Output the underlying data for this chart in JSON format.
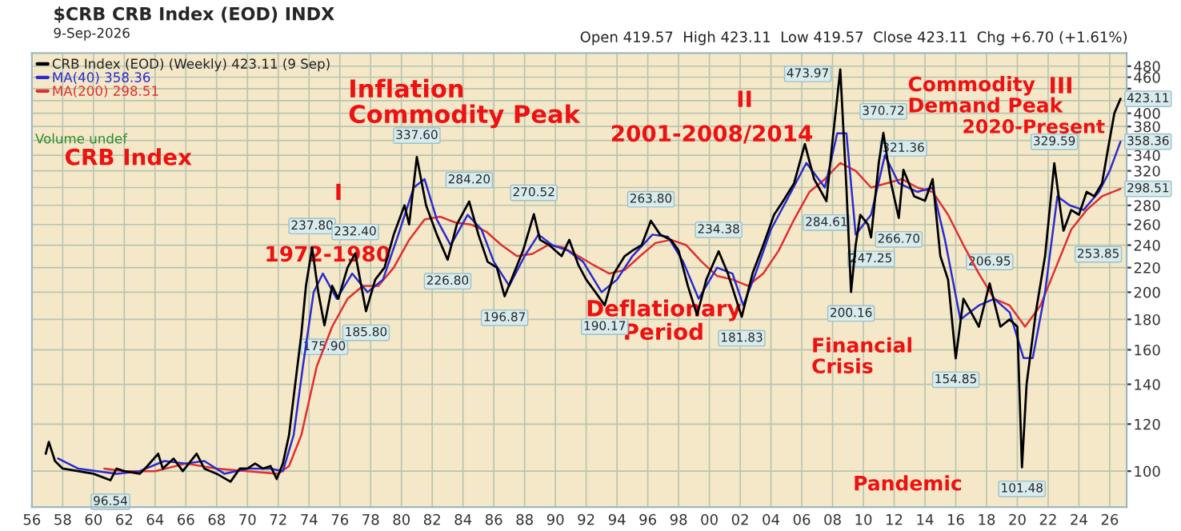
{
  "chart_data": {
    "type": "line",
    "title": "$CRB CRB Index (EOD) INDX",
    "subtitle": "9-Sep-2026",
    "xlim": [
      1956,
      2027.1
    ],
    "ylim": [
      87,
      505
    ],
    "log": "y",
    "grid": true,
    "legend": "top left",
    "tick_labels": "xy",
    "xticks": [
      {
        "value": 1956,
        "label": "56"
      },
      {
        "value": 1958,
        "label": "58"
      },
      {
        "value": 1960,
        "label": "60"
      },
      {
        "value": 1962,
        "label": "62"
      },
      {
        "value": 1964,
        "label": "64"
      },
      {
        "value": 1966,
        "label": "66"
      },
      {
        "value": 1968,
        "label": "68"
      },
      {
        "value": 1970,
        "label": "70"
      },
      {
        "value": 1972,
        "label": "72"
      },
      {
        "value": 1974,
        "label": "74"
      },
      {
        "value": 1976,
        "label": "76"
      },
      {
        "value": 1978,
        "label": "78"
      },
      {
        "value": 1980,
        "label": "80"
      },
      {
        "value": 1982,
        "label": "82"
      },
      {
        "value": 1984,
        "label": "84"
      },
      {
        "value": 1986,
        "label": "86"
      },
      {
        "value": 1988,
        "label": "88"
      },
      {
        "value": 1990,
        "label": "90"
      },
      {
        "value": 1992,
        "label": "92"
      },
      {
        "value": 1994,
        "label": "94"
      },
      {
        "value": 1996,
        "label": "96"
      },
      {
        "value": 1998,
        "label": "98"
      },
      {
        "value": 2000,
        "label": "00"
      },
      {
        "value": 2002,
        "label": "02"
      },
      {
        "value": 2004,
        "label": "04"
      },
      {
        "value": 2006,
        "label": "06"
      },
      {
        "value": 2008,
        "label": "08"
      },
      {
        "value": 2010,
        "label": "10"
      },
      {
        "value": 2012,
        "label": "12"
      },
      {
        "value": 2014,
        "label": "14"
      },
      {
        "value": 2016,
        "label": "16"
      },
      {
        "value": 2018,
        "label": "18"
      },
      {
        "value": 2020,
        "label": "20"
      },
      {
        "value": 2022,
        "label": "22"
      },
      {
        "value": 2024,
        "label": "24"
      },
      {
        "value": 2026,
        "label": "26"
      }
    ],
    "yticks": [
      100,
      120,
      140,
      160,
      180,
      200,
      220,
      240,
      260,
      280,
      {
        "value": 300,
        "label": null
      },
      320,
      340,
      {
        "value": 360,
        "label": null
      },
      380,
      400,
      {
        "value": 420,
        "label": null
      },
      {
        "value": 440,
        "label": null
      },
      460,
      480
    ],
    "series": [
      {
        "name": "CRB Index (EOD) (Weekly) 423.11 (9 Sep)",
        "color": "#000000",
        "x": [
          1956.9,
          1957.1,
          1957.5,
          1958,
          1959,
          1960,
          1961.1,
          1961.5,
          1962,
          1963,
          1963.5,
          1964.2,
          1964.5,
          1965.2,
          1965.8,
          1966.7,
          1967.2,
          1968,
          1968.9,
          1969.5,
          1970,
          1970.5,
          1971,
          1971.5,
          1971.9,
          1972.3,
          1972.7,
          1973.1,
          1973.5,
          1973.8,
          1974.2,
          1974.6,
          1975.0,
          1975.5,
          1975.9,
          1976.5,
          1977.0,
          1977.7,
          1978.3,
          1978.9,
          1979.5,
          1980.2,
          1980.5,
          1981.0,
          1981.6,
          1982.3,
          1983.0,
          1983.6,
          1984.4,
          1985.0,
          1985.6,
          1986.2,
          1986.7,
          1987.3,
          1987.9,
          1988.6,
          1989.0,
          1989.6,
          1990.4,
          1990.9,
          1991.5,
          1992.0,
          1992.6,
          1993.2,
          1993.8,
          1994.5,
          1995.0,
          1995.6,
          1996.2,
          1996.8,
          1997.5,
          1998.0,
          1998.6,
          1999.2,
          1999.8,
          2000.6,
          2001.2,
          2002.1,
          2002.8,
          2003.5,
          2004.2,
          2004.8,
          2005.5,
          2006.2,
          2006.8,
          2007.6,
          2008.0,
          2008.5,
          2008.9,
          2009.2,
          2009.5,
          2009.8,
          2010.3,
          2010.5,
          2011.0,
          2011.3,
          2011.8,
          2012.3,
          2012.6,
          2013.3,
          2014.0,
          2014.5,
          2015.0,
          2015.5,
          2016.0,
          2016.5,
          2017.0,
          2017.5,
          2018.2,
          2018.9,
          2019.5,
          2020.0,
          2020.3,
          2020.6,
          2021.2,
          2021.8,
          2022.4,
          2022.8,
          2023.0,
          2023.5,
          2024.0,
          2024.5,
          2025.0,
          2025.5,
          2025.9,
          2026.3,
          2026.7
        ],
        "values": [
          107,
          112,
          104,
          101,
          100,
          99,
          96.54,
          101,
          100,
          99,
          102,
          107,
          101,
          105,
          100,
          107,
          101,
          99,
          96,
          101,
          101,
          103,
          101,
          102,
          97,
          103,
          115,
          140,
          170,
          205,
          237.8,
          200,
          175.9,
          205,
          195,
          220,
          232.4,
          185.8,
          210,
          220,
          250,
          280,
          260,
          337.6,
          280,
          250,
          226.8,
          260,
          284.2,
          250,
          225,
          220,
          196.87,
          215,
          235,
          270.52,
          245,
          240,
          230,
          245,
          222,
          210,
          200,
          190.17,
          215,
          230,
          235,
          240,
          263.8,
          250,
          245,
          235,
          205,
          183,
          210,
          234.38,
          215,
          181.83,
          215,
          240,
          270,
          285,
          305,
          355,
          310,
          284.61,
          360,
          473.97,
          300,
          200.16,
          240,
          270,
          260,
          247.25,
          330,
          370.72,
          305,
          266.7,
          321.36,
          290,
          285,
          310,
          230,
          210,
          154.85,
          195,
          185,
          175,
          206.95,
          175,
          180,
          175,
          101.48,
          140,
          185,
          230,
          329.59,
          275,
          253.85,
          275,
          270,
          295,
          290,
          305,
          350,
          400,
          423.11
        ]
      },
      {
        "name": "MA(40) 358.36",
        "color": "#2b2bd0",
        "x": [
          1957.7,
          1959,
          1961.5,
          1963,
          1964.6,
          1966,
          1967.2,
          1968.5,
          1970,
          1971.5,
          1972.3,
          1973,
          1973.6,
          1974.3,
          1974.9,
          1975.8,
          1976.8,
          1977.8,
          1978.8,
          1979.8,
          1980.8,
          1981.5,
          1982.3,
          1983.2,
          1984.3,
          1985.2,
          1986.0,
          1987.0,
          1988.0,
          1988.9,
          1989.8,
          1990.8,
          1991.8,
          1993.0,
          1994.0,
          1995.0,
          1996.3,
          1997.3,
          1998.3,
          1999.3,
          2000.5,
          2001.5,
          2002.2,
          2003.0,
          2004.0,
          2005.0,
          2006.3,
          2007.5,
          2008.3,
          2008.9,
          2009.5,
          2010.5,
          2011.4,
          2012.3,
          2013.5,
          2014.5,
          2015.3,
          2016.3,
          2017.5,
          2018.5,
          2019.5,
          2020.4,
          2021.0,
          2021.8,
          2022.6,
          2023.4,
          2024.3,
          2025.3,
          2026.0,
          2026.7
        ],
        "values": [
          105,
          101,
          99,
          100,
          104,
          103,
          104,
          99,
          101,
          101,
          100,
          115,
          150,
          200,
          215,
          195,
          215,
          200,
          210,
          250,
          300,
          310,
          265,
          240,
          270,
          255,
          225,
          205,
          230,
          250,
          240,
          235,
          225,
          200,
          210,
          230,
          250,
          248,
          225,
          195,
          220,
          215,
          190,
          215,
          255,
          285,
          330,
          300,
          370,
          370,
          250,
          270,
          340,
          305,
          295,
          300,
          245,
          180,
          190,
          195,
          185,
          155,
          155,
          200,
          290,
          280,
          275,
          295,
          320,
          358.36
        ]
      },
      {
        "name": "MA(200) 298.51",
        "color": "#e03030",
        "x": [
          1960.7,
          1962,
          1964,
          1966,
          1968,
          1970,
          1972,
          1972.7,
          1973.5,
          1974.5,
          1975.5,
          1976.5,
          1977.5,
          1978.5,
          1979.5,
          1980.5,
          1981.5,
          1982.5,
          1983.5,
          1984.5,
          1985.5,
          1986.5,
          1987.5,
          1988.5,
          1989.5,
          1990.5,
          1991.5,
          1992.5,
          1993.5,
          1994.5,
          1995.5,
          1996.5,
          1997.5,
          1998.5,
          1999.5,
          2000.5,
          2001.5,
          2002.5,
          2003.5,
          2004.5,
          2005.5,
          2006.5,
          2007.5,
          2008.5,
          2009.5,
          2010.5,
          2011.5,
          2012.5,
          2013.5,
          2014.5,
          2015.5,
          2016.5,
          2017.5,
          2018.5,
          2019.5,
          2020.5,
          2021.5,
          2022.5,
          2023.5,
          2024.5,
          2025.5,
          2026.7
        ],
        "values": [
          101,
          100,
          100,
          103,
          101,
          100,
          99,
          102,
          115,
          150,
          175,
          195,
          205,
          205,
          220,
          245,
          265,
          268,
          262,
          260,
          253,
          240,
          230,
          232,
          240,
          238,
          230,
          222,
          215,
          218,
          230,
          242,
          245,
          240,
          225,
          213,
          210,
          205,
          215,
          235,
          265,
          295,
          310,
          330,
          320,
          300,
          305,
          310,
          300,
          295,
          270,
          240,
          215,
          195,
          190,
          175,
          190,
          220,
          255,
          275,
          290,
          298.51
        ]
      }
    ],
    "annotations": [
      "Open 419.57  High 423.11  Low 419.57  Close 423.11  Chg +6.70 (+1.61%)",
      "Volume undef",
      "CRB Index",
      "I",
      "1972-1980",
      "Inflation\nCommodity Peak",
      "Deflationary\nPeriod",
      "II",
      "2001-2008/2014",
      "Commodity\nDemand Peak",
      "Financial\nCrisis",
      "III",
      "2020-Present",
      "Pandemic",
      {
        "text": "96.54",
        "x": 1961.1,
        "y": 96.54
      },
      {
        "text": "237.80",
        "x": 1974.2,
        "y": 237.8
      },
      {
        "text": "175.90",
        "x": 1975.0,
        "y": 175.9
      },
      {
        "text": "232.40",
        "x": 1977.0,
        "y": 232.4
      },
      {
        "text": "185.80",
        "x": 1977.7,
        "y": 185.8
      },
      {
        "text": "337.60",
        "x": 1981.0,
        "y": 337.6
      },
      {
        "text": "226.80",
        "x": 1983.0,
        "y": 226.8
      },
      {
        "text": "284.20",
        "x": 1984.4,
        "y": 284.2
      },
      {
        "text": "196.87",
        "x": 1986.7,
        "y": 196.87
      },
      {
        "text": "270.52",
        "x": 1988.6,
        "y": 270.52
      },
      {
        "text": "190.17",
        "x": 1993.2,
        "y": 190.17
      },
      {
        "text": "263.80",
        "x": 1996.2,
        "y": 263.8
      },
      {
        "text": "234.38",
        "x": 2000.6,
        "y": 234.38
      },
      {
        "text": "181.83",
        "x": 2002.1,
        "y": 181.83
      },
      {
        "text": "284.61",
        "x": 2007.6,
        "y": 284.61
      },
      {
        "text": "473.97",
        "x": 2008.5,
        "y": 473.97
      },
      {
        "text": "200.16",
        "x": 2009.2,
        "y": 200.16
      },
      {
        "text": "247.25",
        "x": 2010.5,
        "y": 247.25
      },
      {
        "text": "370.72",
        "x": 2011.3,
        "y": 370.72
      },
      {
        "text": "266.70",
        "x": 2012.3,
        "y": 266.7
      },
      {
        "text": "321.36",
        "x": 2012.6,
        "y": 321.36
      },
      {
        "text": "154.85",
        "x": 2016.0,
        "y": 154.85
      },
      {
        "text": "206.95",
        "x": 2018.2,
        "y": 206.95
      },
      {
        "text": "101.48",
        "x": 2020.3,
        "y": 101.48
      },
      {
        "text": "329.59",
        "x": 2022.4,
        "y": 329.59
      },
      {
        "text": "253.85",
        "x": 2023.0,
        "y": 253.85
      },
      {
        "text": "423.11",
        "x": 2026.7,
        "y": 423.11
      },
      {
        "text": "358.36",
        "x": 2026.7,
        "y": 358.36
      },
      {
        "text": "298.51",
        "x": 2026.7,
        "y": 298.51
      }
    ]
  }
}
